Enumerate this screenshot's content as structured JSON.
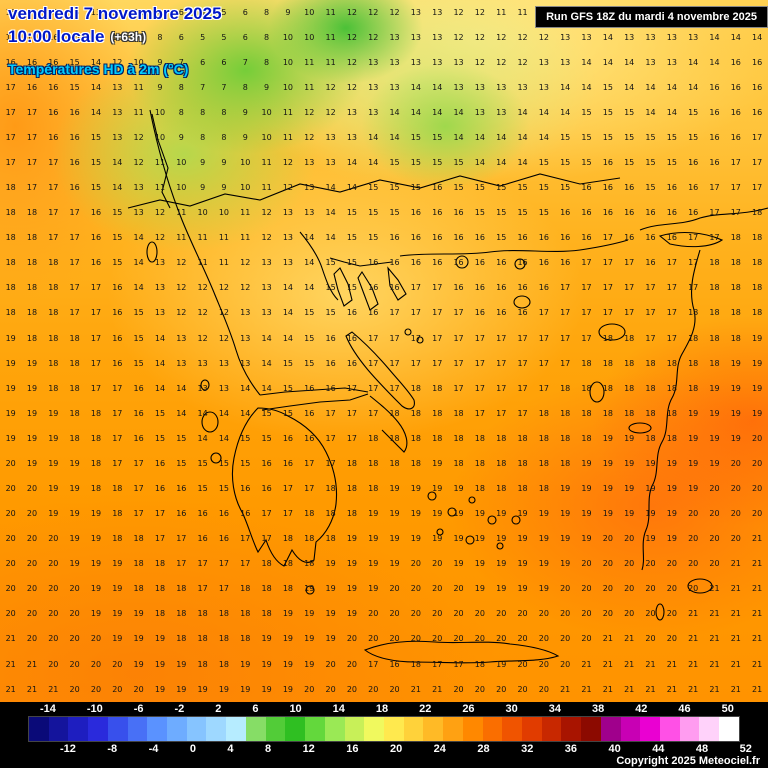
{
  "header": {
    "date": "vendredi 7 novembre 2025",
    "time": "10:00 locale",
    "offset": "(+63h)",
    "subtitle": "Températures HD à 2m (°C)",
    "run": "Run GFS 18Z du mardi 4 novembre 2025"
  },
  "footer": {
    "copyright": "Copyright 2025 Meteociel.fr"
  },
  "colorbar": {
    "top_labels": [
      "-14",
      "-10",
      "-6",
      "-2",
      "2",
      "6",
      "10",
      "14",
      "18",
      "22",
      "26",
      "30",
      "34",
      "38",
      "42",
      "46",
      "50"
    ],
    "bottom_labels": [
      "-12",
      "-8",
      "-4",
      "0",
      "4",
      "8",
      "12",
      "16",
      "20",
      "24",
      "28",
      "32",
      "36",
      "40",
      "44",
      "48",
      "52"
    ],
    "colors": [
      "#0a0a78",
      "#14149c",
      "#1e1ec0",
      "#2a2adc",
      "#3850ec",
      "#4870f6",
      "#5a92ff",
      "#6eacff",
      "#86c4ff",
      "#9ed8ff",
      "#b6ecff",
      "#86dd66",
      "#52cc38",
      "#2fbf22",
      "#63d83c",
      "#9ae955",
      "#c8f058",
      "#f0f95e",
      "#ffe94e",
      "#ffd23a",
      "#ffba26",
      "#ffa112",
      "#ff8800",
      "#fa6e00",
      "#f05400",
      "#e13c00",
      "#c82800",
      "#a81400",
      "#8c0a00",
      "#a0008c",
      "#c800b4",
      "#ea00d2",
      "#ff50e6",
      "#ff9cf0",
      "#ffd2fa",
      "#ffffff"
    ]
  },
  "map": {
    "grid_rows": [
      "16 16 16 15 13 12 10 8 6 5 5 6 8 9 10 11 12 12 12 13 13 12 12 11 11 12 12 13 13 13 12 12 13 13 13 13",
      "16 16 16 15 13 12 10 8 6 5 5 6 8 10 10 11 12 12 13 13 13 12 12 12 12 12 13 13 14 13 13 13 13 14 14 14",
      "16 16 16 15 14 12 10 9 7 6 6 7 8 10 11 11 12 13 13 13 13 13 12 12 12 13 13 14 14 14 13 13 14 14 16 16",
      "17 16 16 15 14 13 11 9 8 7 7 8 9 10 11 12 12 13 13 14 14 13 13 13 13 13 14 14 15 14 14 14 14 16 16 16",
      "17 17 16 16 14 13 11 10 8 8 8 9 10 11 12 12 13 13 14 14 14 14 13 13 14 14 14 15 15 15 14 14 15 16 16 16",
      "17 17 16 16 15 13 12 10 9 8 8 9 10 11 12 13 13 14 14 15 15 14 14 14 14 14 15 15 15 15 15 15 15 16 16 17",
      "17 17 17 16 15 14 12 11 10 9 9 10 11 12 13 13 14 14 15 15 15 15 14 14 14 15 15 15 16 15 15 15 16 16 17 17",
      "18 17 17 16 15 14 13 11 10 9 9 10 11 12 13 14 14 15 15 15 16 15 15 15 15 15 15 16 16 16 15 16 16 17 17 17",
      "18 18 17 17 16 15 13 12 11 10 10 11 12 13 13 14 15 15 15 16 16 16 15 15 15 15 16 16 16 16 16 16 16 17 17 18",
      "18 18 17 17 16 15 14 12 11 11 11 11 12 13 14 14 15 15 16 16 16 16 16 15 16 16 16 16 17 16 16 16 17 17 18 18",
      "18 18 18 17 16 15 14 13 12 11 11 12 13 13 14 15 15 16 16 16 16 16 16 16 16 16 16 17 17 17 16 17 17 18 18 18",
      "18 18 18 17 17 16 14 13 12 12 12 12 13 14 14 15 15 16 16 17 17 16 16 16 16 16 17 17 17 17 17 17 17 18 18 18",
      "18 18 18 17 17 16 15 13 12 12 12 13 13 14 15 15 16 16 17 17 17 17 16 16 16 17 17 17 17 17 17 17 18 18 18 18",
      "19 18 18 18 17 16 15 14 13 12 12 13 14 14 15 16 16 17 17 17 17 17 17 17 17 17 17 17 18 18 17 17 18 18 18 19",
      "19 19 18 18 17 16 15 14 13 13 13 13 14 15 15 16 16 17 17 17 17 17 17 17 17 17 17 18 18 18 18 18 18 18 19 19",
      "19 19 18 18 17 17 16 14 14 13 13 14 14 15 16 16 17 17 17 18 18 17 17 17 17 17 18 18 18 18 18 18 18 19 19 19",
      "19 19 19 18 18 17 16 15 14 14 14 14 15 15 16 17 17 17 18 18 18 18 17 17 17 18 18 18 18 18 18 18 19 19 19 19",
      "19 19 19 18 18 17 16 15 15 14 14 15 15 16 16 17 17 18 18 18 18 18 18 18 18 18 18 18 19 19 18 18 19 19 19 20",
      "20 19 19 19 18 17 17 16 15 15 15 15 16 16 17 17 18 18 18 18 19 18 18 18 18 18 18 19 19 19 19 19 19 19 20 20",
      "20 20 19 19 18 18 17 16 16 15 15 16 16 17 17 18 18 18 19 19 19 19 18 18 18 18 19 19 19 19 19 19 19 20 20 20",
      "20 20 19 19 19 18 17 17 16 16 16 16 17 17 18 18 18 19 19 19 19 19 19 19 19 19 19 19 19 19 19 19 20 20 20 20",
      "20 20 20 19 19 18 18 17 17 16 16 17 17 18 18 18 19 19 19 19 19 19 19 19 19 19 19 19 20 20 19 19 20 20 20 21",
      "20 20 20 19 19 19 18 18 17 17 17 17 18 18 18 19 19 19 19 20 20 19 19 19 19 19 19 20 20 20 20 20 20 20 21 21",
      "20 20 20 20 19 19 18 18 18 17 17 18 18 18 19 19 19 19 20 20 20 20 19 19 19 19 20 20 20 20 20 20 20 21 21 21",
      "20 20 20 20 19 19 19 18 18 18 18 18 18 19 19 19 19 20 20 20 20 20 20 20 20 20 20 20 20 20 20 20 21 21 21 21",
      "21 20 20 20 20 19 19 19 18 18 18 18 19 19 19 19 20 20 20 20 20 20 20 20 20 20 20 20 21 21 20 20 21 21 21 21",
      "21 21 20 20 20 20 19 19 19 18 18 19 19 19 19 20 20 17 16 18 17 17 18 19 20 20 20 21 21 21 21 21 21 21 21 21",
      "21 21 21 20 20 20 20 19 19 19 19 19 19 19 20 20 20 20 20 21 21 20 20 20 20 20 21 21 21 21 21 21 21 21 21 21"
    ]
  }
}
